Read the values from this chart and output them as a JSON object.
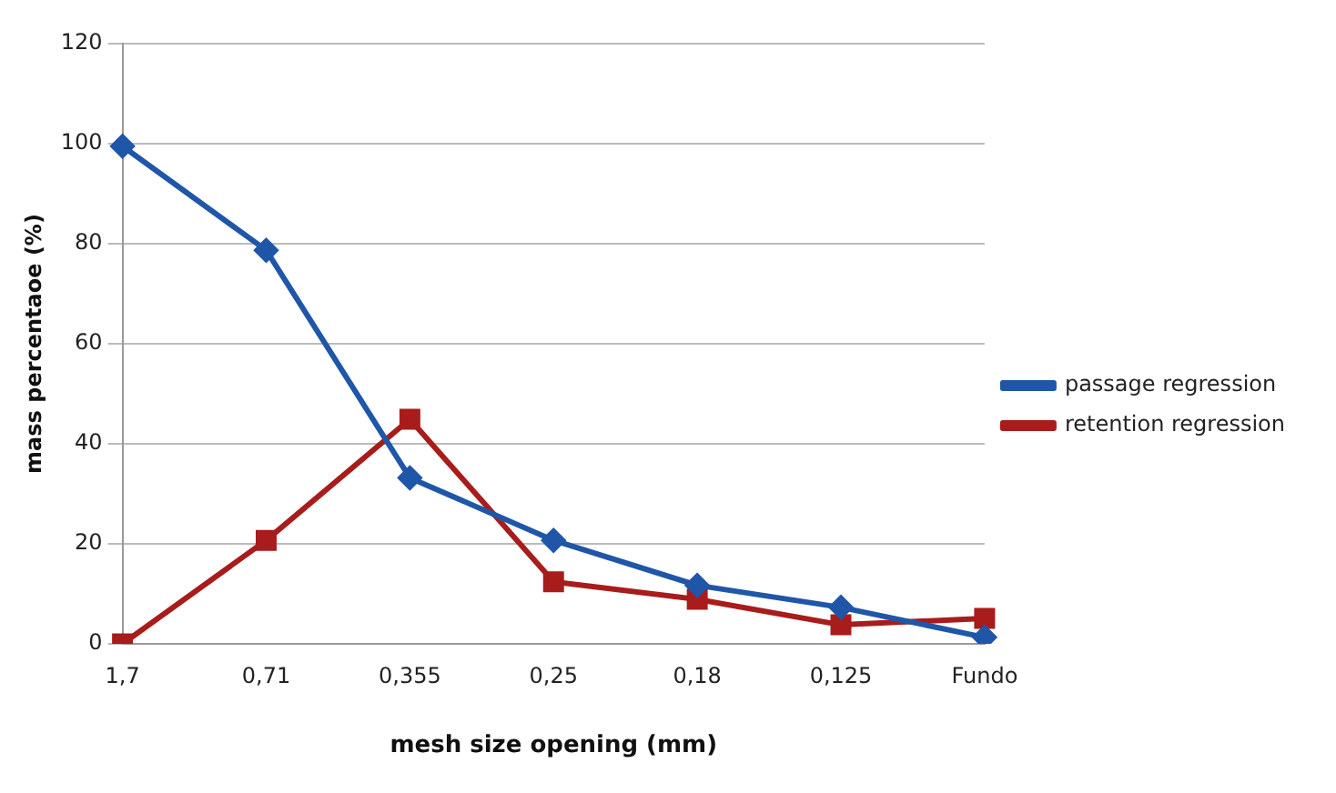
{
  "chart_data": {
    "type": "line",
    "xlabel": "mesh size opening (mm)",
    "ylabel": "mass percentaoe (%)",
    "categories": [
      "1,7",
      "0,71",
      "0,355",
      "0,25",
      "0,18",
      "0,125",
      "Fundo"
    ],
    "series": [
      {
        "name": "passage regression",
        "color": "#1f56a8",
        "marker": "diamond",
        "values": [
          99.5,
          78.7,
          33.2,
          20.7,
          11.7,
          7.3,
          1.3
        ]
      },
      {
        "name": "retention regression",
        "color": "#a81c1c",
        "marker": "square",
        "values": [
          0,
          20.7,
          44.9,
          12.4,
          8.9,
          3.8,
          5.1
        ]
      }
    ],
    "ylim": [
      0,
      120
    ],
    "yticks": [
      0,
      20,
      40,
      60,
      80,
      100,
      120
    ],
    "grid": "y",
    "legend": "right",
    "line_style": "solid"
  }
}
